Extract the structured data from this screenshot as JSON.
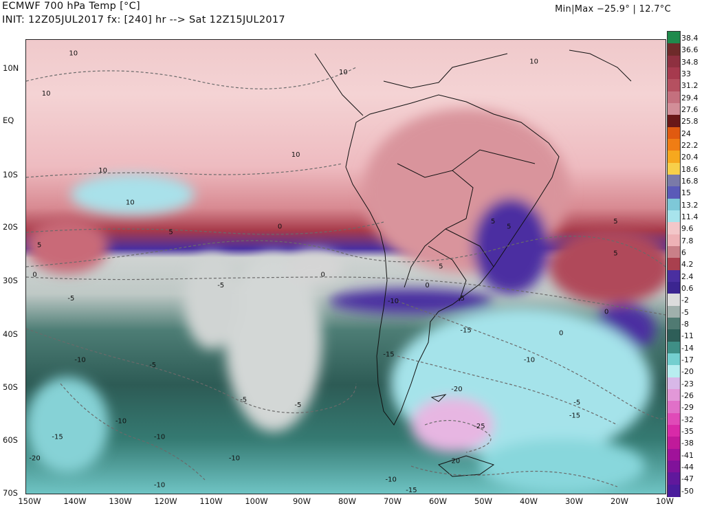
{
  "header": {
    "title": "ECMWF 700 hPa Temp [°C]",
    "init_line": "INIT: 12Z05JUL2017 fx: [240] hr --> Sat 12Z15JUL2017",
    "minmax": "Min|Max −25.9° | 12.7°C"
  },
  "lat_labels": [
    "10N",
    "EQ",
    "10S",
    "20S",
    "30S",
    "40S",
    "50S",
    "60S",
    "70S"
  ],
  "lon_labels": [
    "150W",
    "140W",
    "130W",
    "120W",
    "110W",
    "100W",
    "90W",
    "80W",
    "70W",
    "60W",
    "50W",
    "40W",
    "30W",
    "20W",
    "10W"
  ],
  "colorbar": {
    "labels": [
      "38.4",
      "36.6",
      "34.8",
      "33",
      "31.2",
      "29.4",
      "27.6",
      "25.8",
      "24",
      "22.2",
      "20.4",
      "18.6",
      "16.8",
      "15",
      "13.2",
      "11.4",
      "9.6",
      "7.8",
      "6",
      "4.2",
      "2.4",
      "0.6",
      "-2",
      "-5",
      "-8",
      "-11",
      "-14",
      "-17",
      "-20",
      "-23",
      "-26",
      "-29",
      "-32",
      "-35",
      "-38",
      "-41",
      "-44",
      "-47",
      "-50"
    ],
    "colors": [
      "#1f8a4c",
      "#6e2a2a",
      "#8e3040",
      "#a63a4e",
      "#b55060",
      "#c4707e",
      "#d28e98",
      "#6a1818",
      "#e05a10",
      "#f07d14",
      "#f6a81e",
      "#f7cf4a",
      "#7a7aa8",
      "#5a5ab8",
      "#7ec8d8",
      "#a8e4ec",
      "#f3c7c9",
      "#eeb2b6",
      "#c98088",
      "#a9404e",
      "#4a2fa0",
      "#3b2590",
      "#dcdcdc",
      "#a0b0ac",
      "#507a72",
      "#2e5e58",
      "#3f8f86",
      "#74cfcf",
      "#b8eef0",
      "#d8b8e8",
      "#e298d8",
      "#e070c8",
      "#e04ab8",
      "#d82aa8",
      "#c01a9a",
      "#a0129a",
      "#80129a",
      "#60189c",
      "#4a1c9c"
    ]
  },
  "contour_labels": [
    {
      "text": "10",
      "lon": -140.5,
      "lat": 12.5
    },
    {
      "text": "10",
      "lon": -146.5,
      "lat": 5
    },
    {
      "text": "10",
      "lon": -134,
      "lat": -9.5
    },
    {
      "text": "10",
      "lon": -91.5,
      "lat": -6.5
    },
    {
      "text": "10",
      "lon": -128,
      "lat": -15.5
    },
    {
      "text": "10",
      "lon": -81,
      "lat": 9
    },
    {
      "text": "10",
      "lon": -39,
      "lat": 11
    },
    {
      "text": "5",
      "lon": -119,
      "lat": -21
    },
    {
      "text": "5",
      "lon": -148,
      "lat": -23.5
    },
    {
      "text": "5",
      "lon": -48,
      "lat": -19
    },
    {
      "text": "5",
      "lon": -59.5,
      "lat": -27.5
    },
    {
      "text": "5",
      "lon": -44.5,
      "lat": -20
    },
    {
      "text": "5",
      "lon": -21,
      "lat": -19
    },
    {
      "text": "5",
      "lon": -21,
      "lat": -25
    },
    {
      "text": "0",
      "lon": -149,
      "lat": -29
    },
    {
      "text": "0",
      "lon": -95,
      "lat": -20
    },
    {
      "text": "0",
      "lon": -85.5,
      "lat": -29
    },
    {
      "text": "0",
      "lon": -62.5,
      "lat": -31
    },
    {
      "text": "0",
      "lon": -33,
      "lat": -40
    },
    {
      "text": "0",
      "lon": -23,
      "lat": -36
    },
    {
      "text": "-5",
      "lon": -141,
      "lat": -33.5
    },
    {
      "text": "-5",
      "lon": -108,
      "lat": -31
    },
    {
      "text": "-5",
      "lon": -123,
      "lat": -46
    },
    {
      "text": "-5",
      "lon": -103,
      "lat": -52.5
    },
    {
      "text": "-5",
      "lon": -91,
      "lat": -53.5
    },
    {
      "text": "-5",
      "lon": -55,
      "lat": -33.5
    },
    {
      "text": "-5",
      "lon": -29.5,
      "lat": -53
    },
    {
      "text": "-10",
      "lon": -139,
      "lat": -45
    },
    {
      "text": "-10",
      "lon": -130,
      "lat": -56.5
    },
    {
      "text": "-10",
      "lon": -121.5,
      "lat": -59.5
    },
    {
      "text": "-10",
      "lon": -105,
      "lat": -63.5
    },
    {
      "text": "-10",
      "lon": -121.5,
      "lat": -68.5
    },
    {
      "text": "-10",
      "lon": -70,
      "lat": -34
    },
    {
      "text": "-10",
      "lon": -40,
      "lat": -45
    },
    {
      "text": "-10",
      "lon": -70.5,
      "lat": -67.5
    },
    {
      "text": "-15",
      "lon": -144,
      "lat": -59.5
    },
    {
      "text": "-15",
      "lon": -71,
      "lat": -44
    },
    {
      "text": "-15",
      "lon": -54,
      "lat": -39.5
    },
    {
      "text": "-15",
      "lon": -30,
      "lat": -55.5
    },
    {
      "text": "-15",
      "lon": -66,
      "lat": -69.5
    },
    {
      "text": "-20",
      "lon": -149,
      "lat": -63.5
    },
    {
      "text": "-20",
      "lon": -56,
      "lat": -50.5
    },
    {
      "text": "-20",
      "lon": -56.5,
      "lat": -64
    },
    {
      "text": "-25",
      "lon": -51,
      "lat": -57.5
    }
  ]
}
